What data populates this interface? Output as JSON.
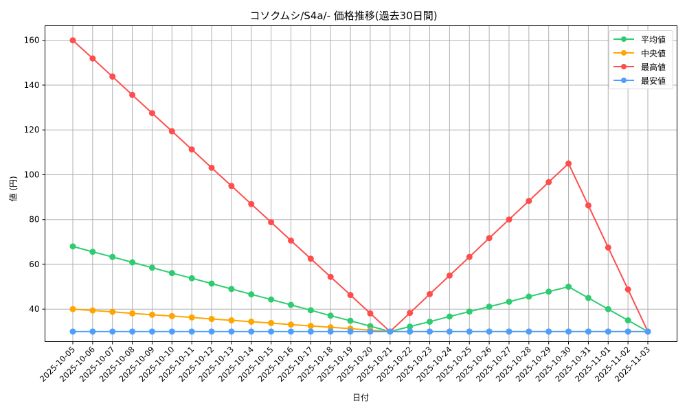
{
  "chart_data": {
    "type": "line",
    "title": "コソクムシ/S4a/- 価格推移(過去30日間)",
    "xlabel": "日付",
    "ylabel": "値 (円)",
    "ylim": [
      25.5,
      166.5
    ],
    "yticks": [
      40,
      60,
      80,
      100,
      120,
      140,
      160
    ],
    "grid": true,
    "legend_position": "upper right",
    "categories": [
      "2025-10-05",
      "2025-10-06",
      "2025-10-07",
      "2025-10-08",
      "2025-10-09",
      "2025-10-10",
      "2025-10-11",
      "2025-10-12",
      "2025-10-13",
      "2025-10-14",
      "2025-10-15",
      "2025-10-16",
      "2025-10-17",
      "2025-10-18",
      "2025-10-19",
      "2025-10-20",
      "2025-10-21",
      "2025-10-22",
      "2025-10-23",
      "2025-10-24",
      "2025-10-25",
      "2025-10-26",
      "2025-10-27",
      "2025-10-28",
      "2025-10-29",
      "2025-10-30",
      "2025-10-31",
      "2025-11-01",
      "2025-11-02",
      "2025-11-03"
    ],
    "series": [
      {
        "name": "平均値",
        "color": "#2ecc71",
        "values": [
          68.0,
          65.6,
          63.3,
          60.9,
          58.5,
          56.1,
          53.8,
          51.4,
          49.0,
          46.6,
          44.3,
          41.9,
          39.5,
          37.1,
          34.8,
          32.4,
          30.0,
          32.2,
          34.4,
          36.7,
          38.9,
          41.1,
          43.3,
          45.6,
          47.8,
          50.0,
          45.0,
          40.0,
          35.0,
          30.0
        ]
      },
      {
        "name": "中央値",
        "color": "#ffa500",
        "values": [
          40.0,
          39.4,
          38.8,
          38.1,
          37.5,
          36.9,
          36.3,
          35.6,
          35.0,
          34.4,
          33.8,
          33.1,
          32.5,
          31.9,
          31.3,
          30.6,
          30.0,
          30.0,
          30.0,
          30.0,
          30.0,
          30.0,
          30.0,
          30.0,
          30.0,
          30.0,
          30.0,
          30.0,
          30.0,
          30.0
        ]
      },
      {
        "name": "最高値",
        "color": "#ff4d4d",
        "values": [
          160.0,
          151.9,
          143.8,
          135.6,
          127.5,
          119.4,
          111.3,
          103.1,
          95.0,
          86.9,
          78.8,
          70.6,
          62.5,
          54.4,
          46.3,
          38.1,
          30.0,
          38.3,
          46.7,
          55.0,
          63.3,
          71.7,
          80.0,
          88.3,
          96.7,
          105.0,
          86.3,
          67.5,
          48.8,
          30.0
        ]
      },
      {
        "name": "最安値",
        "color": "#4d9fff",
        "values": [
          30,
          30,
          30,
          30,
          30,
          30,
          30,
          30,
          30,
          30,
          30,
          30,
          30,
          30,
          30,
          30,
          30,
          30,
          30,
          30,
          30,
          30,
          30,
          30,
          30,
          30,
          30,
          30,
          30,
          30
        ]
      }
    ]
  }
}
